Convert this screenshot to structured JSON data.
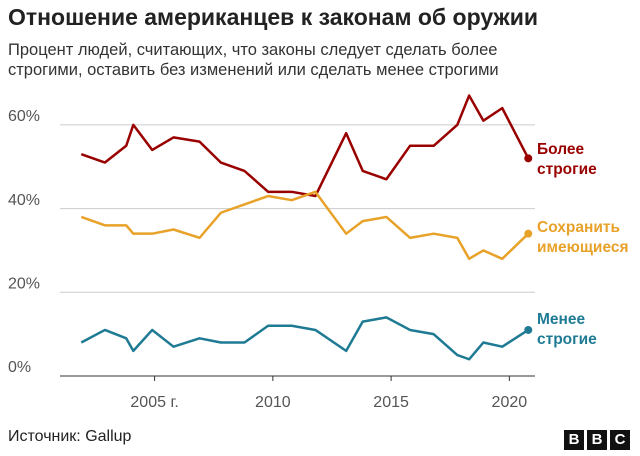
{
  "chart_data": {
    "type": "line",
    "title": "Отношение американцев к законам об оружии",
    "subtitle": "Процент людей, считающих, что законы следует сделать более строгими, оставить без изменений или сделать менее строгими",
    "source": "Источник: Gallup",
    "logo": [
      "B",
      "B",
      "C"
    ],
    "x": [
      2001.9,
      2002.9,
      2003.8,
      2004.1,
      2004.9,
      2005.8,
      2006.9,
      2007.8,
      2008.8,
      2009.8,
      2010.8,
      2011.8,
      2013.1,
      2013.8,
      2014.8,
      2015.8,
      2016.8,
      2017.8,
      2018.3,
      2018.9,
      2019.7,
      2020.8
    ],
    "series": [
      {
        "name": "Более строгие",
        "color": "#990000",
        "values": [
          53,
          51,
          55,
          60,
          54,
          57,
          56,
          51,
          49,
          44,
          44,
          43,
          58,
          49,
          47,
          55,
          55,
          60,
          67,
          61,
          64,
          52
        ]
      },
      {
        "name": "Сохранить имеющиеся",
        "color": "#e8a22a",
        "values": [
          38,
          36,
          36,
          34,
          34,
          35,
          33,
          39,
          41,
          43,
          42,
          44,
          34,
          37,
          38,
          33,
          34,
          33,
          28,
          30,
          28,
          34
        ]
      },
      {
        "name": "Менее строгие",
        "color": "#1f7a94",
        "values": [
          8,
          11,
          9,
          6,
          11,
          7,
          9,
          8,
          8,
          12,
          12,
          11,
          6,
          13,
          14,
          11,
          10,
          5,
          4,
          8,
          7,
          11
        ]
      }
    ],
    "xlim": [
      2001,
      2021
    ],
    "xticks": [
      {
        "value": 2005,
        "label": "2005 г."
      },
      2010,
      2015,
      2020
    ],
    "ylim": [
      0,
      70
    ],
    "yticks": [
      {
        "value": 0,
        "label": "0%"
      },
      {
        "value": 20,
        "label": "20%"
      },
      {
        "value": 40,
        "label": "40%"
      },
      {
        "value": 60,
        "label": "60%"
      }
    ],
    "grid": true
  }
}
